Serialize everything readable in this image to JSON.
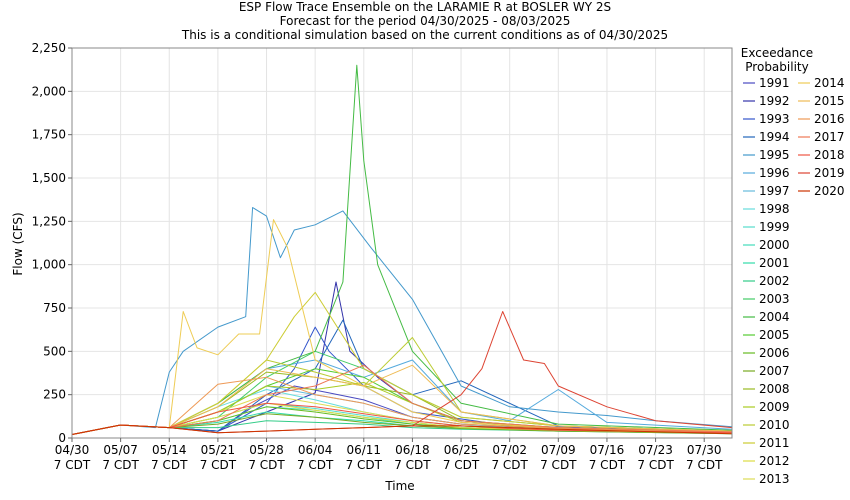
{
  "chart_data": {
    "type": "line",
    "title": [
      "ESP Flow Trace Ensemble on the LARAMIE R at BOSLER WY 2S",
      "Forecast for the period 04/30/2025 - 08/03/2025",
      "This is a conditional simulation based on the current conditions as of 04/30/2025"
    ],
    "xlabel": "Time",
    "ylabel": "Flow (CFS)",
    "x_domain": [
      "2025-04-30",
      "2025-08-03"
    ],
    "ylim": [
      0,
      2250
    ],
    "yticks": [
      0,
      250,
      500,
      750,
      1000,
      1250,
      1500,
      1750,
      2000,
      2250
    ],
    "ytick_labels": [
      "0",
      "250",
      "500",
      "750",
      "1,000",
      "1,250",
      "1,500",
      "1,750",
      "2,000",
      "2,250"
    ],
    "xticks": [
      "2025-04-30",
      "2025-05-07",
      "2025-05-14",
      "2025-05-21",
      "2025-05-28",
      "2025-06-04",
      "2025-06-11",
      "2025-06-18",
      "2025-06-25",
      "2025-07-02",
      "2025-07-09",
      "2025-07-16",
      "2025-07-23",
      "2025-07-30"
    ],
    "xtick_labels": [
      [
        "04/30",
        "7 CDT"
      ],
      [
        "05/07",
        "7 CDT"
      ],
      [
        "05/14",
        "7 CDT"
      ],
      [
        "05/21",
        "7 CDT"
      ],
      [
        "05/28",
        "7 CDT"
      ],
      [
        "06/04",
        "7 CDT"
      ],
      [
        "06/11",
        "7 CDT"
      ],
      [
        "06/18",
        "7 CDT"
      ],
      [
        "06/25",
        "7 CDT"
      ],
      [
        "07/02",
        "7 CDT"
      ],
      [
        "07/09",
        "7 CDT"
      ],
      [
        "07/16",
        "7 CDT"
      ],
      [
        "07/23",
        "7 CDT"
      ],
      [
        "07/30",
        "7 CDT"
      ]
    ],
    "grid": true,
    "legend": {
      "title": [
        "Exceedance",
        "Probability"
      ],
      "placement": "right"
    },
    "series": [
      {
        "name": "1991",
        "color": "#4a4ac0",
        "x": [
          "2025-04-30",
          "2025-05-07",
          "2025-05-14",
          "2025-05-21",
          "2025-05-26",
          "2025-06-01",
          "2025-06-06",
          "2025-06-11",
          "2025-06-18",
          "2025-06-25",
          "2025-07-09",
          "2025-08-03"
        ],
        "y": [
          20,
          75,
          60,
          40,
          180,
          300,
          260,
          220,
          120,
          80,
          50,
          30
        ]
      },
      {
        "name": "1992",
        "color": "#3333aa",
        "x": [
          "2025-04-30",
          "2025-05-07",
          "2025-05-14",
          "2025-05-21",
          "2025-05-28",
          "2025-06-04",
          "2025-06-07",
          "2025-06-09",
          "2025-06-13",
          "2025-06-18",
          "2025-06-25",
          "2025-07-09",
          "2025-08-03"
        ],
        "y": [
          20,
          75,
          60,
          40,
          150,
          260,
          900,
          500,
          350,
          200,
          100,
          55,
          35
        ]
      },
      {
        "name": "1993",
        "color": "#3355cc",
        "x": [
          "2025-04-30",
          "2025-05-07",
          "2025-05-14",
          "2025-05-21",
          "2025-05-28",
          "2025-06-01",
          "2025-06-04",
          "2025-06-06",
          "2025-06-11",
          "2025-06-18",
          "2025-07-02",
          "2025-08-03"
        ],
        "y": [
          20,
          75,
          60,
          40,
          200,
          400,
          640,
          500,
          300,
          150,
          70,
          40
        ]
      },
      {
        "name": "1994",
        "color": "#2266bb",
        "x": [
          "2025-04-30",
          "2025-05-07",
          "2025-05-14",
          "2025-05-21",
          "2025-05-28",
          "2025-06-04",
          "2025-06-08",
          "2025-06-11",
          "2025-06-18",
          "2025-06-25",
          "2025-07-09",
          "2025-08-03"
        ],
        "y": [
          20,
          75,
          60,
          40,
          250,
          400,
          680,
          400,
          250,
          330,
          70,
          40
        ]
      },
      {
        "name": "1995",
        "color": "#4499cc",
        "x": [
          "2025-04-30",
          "2025-05-07",
          "2025-05-12",
          "2025-05-14",
          "2025-05-16",
          "2025-05-21",
          "2025-05-25",
          "2025-05-26",
          "2025-05-28",
          "2025-05-30",
          "2025-06-01",
          "2025-06-04",
          "2025-06-08",
          "2025-06-12",
          "2025-06-14",
          "2025-06-18",
          "2025-06-25",
          "2025-07-02",
          "2025-07-09",
          "2025-07-16",
          "2025-07-23",
          "2025-08-03"
        ],
        "y": [
          20,
          75,
          60,
          380,
          500,
          640,
          700,
          1330,
          1280,
          1040,
          1200,
          1230,
          1310,
          1100,
          1000,
          800,
          300,
          180,
          150,
          130,
          100,
          65
        ]
      },
      {
        "name": "1996",
        "color": "#55aadd",
        "x": [
          "2025-04-30",
          "2025-05-07",
          "2025-05-14",
          "2025-05-21",
          "2025-05-28",
          "2025-06-04",
          "2025-06-11",
          "2025-06-18",
          "2025-06-25",
          "2025-07-02",
          "2025-07-09",
          "2025-07-16",
          "2025-08-03"
        ],
        "y": [
          20,
          75,
          60,
          200,
          400,
          450,
          350,
          450,
          150,
          100,
          280,
          90,
          50
        ]
      },
      {
        "name": "1997",
        "color": "#66bbdd",
        "x": [
          "2025-04-30",
          "2025-05-07",
          "2025-05-14",
          "2025-05-21",
          "2025-05-28",
          "2025-06-04",
          "2025-06-11",
          "2025-06-18",
          "2025-06-25",
          "2025-07-02",
          "2025-07-09",
          "2025-08-03"
        ],
        "y": [
          20,
          75,
          60,
          150,
          300,
          250,
          200,
          120,
          80,
          60,
          50,
          30
        ]
      },
      {
        "name": "1998",
        "color": "#66dddd",
        "x": [
          "2025-04-30",
          "2025-05-07",
          "2025-05-14",
          "2025-05-21",
          "2025-05-28",
          "2025-06-04",
          "2025-06-11",
          "2025-06-18",
          "2025-06-25",
          "2025-07-09",
          "2025-08-03"
        ],
        "y": [
          20,
          75,
          60,
          180,
          280,
          220,
          150,
          100,
          70,
          50,
          30
        ]
      },
      {
        "name": "1999",
        "color": "#55ddcc",
        "x": [
          "2025-04-30",
          "2025-05-07",
          "2025-05-14",
          "2025-05-21",
          "2025-05-28",
          "2025-06-04",
          "2025-06-11",
          "2025-06-18",
          "2025-06-25",
          "2025-07-09",
          "2025-08-03"
        ],
        "y": [
          20,
          75,
          60,
          120,
          200,
          170,
          130,
          90,
          60,
          45,
          30
        ]
      },
      {
        "name": "2000",
        "color": "#44ddbb",
        "x": [
          "2025-04-30",
          "2025-05-07",
          "2025-05-14",
          "2025-05-21",
          "2025-05-28",
          "2025-06-04",
          "2025-06-11",
          "2025-06-18",
          "2025-06-25",
          "2025-07-09",
          "2025-08-03"
        ],
        "y": [
          20,
          75,
          60,
          100,
          180,
          160,
          120,
          80,
          60,
          45,
          30
        ]
      },
      {
        "name": "2001",
        "color": "#33ddaa",
        "x": [
          "2025-04-30",
          "2025-05-07",
          "2025-05-14",
          "2025-05-21",
          "2025-05-28",
          "2025-06-04",
          "2025-06-11",
          "2025-06-18",
          "2025-06-25",
          "2025-07-09",
          "2025-08-03"
        ],
        "y": [
          20,
          75,
          60,
          90,
          150,
          120,
          100,
          70,
          55,
          40,
          28
        ]
      },
      {
        "name": "2002",
        "color": "#33cc88",
        "x": [
          "2025-04-30",
          "2025-05-07",
          "2025-05-14",
          "2025-05-21",
          "2025-05-28",
          "2025-06-04",
          "2025-06-11",
          "2025-06-18",
          "2025-06-25",
          "2025-07-09",
          "2025-08-03"
        ],
        "y": [
          20,
          75,
          60,
          60,
          100,
          90,
          80,
          60,
          50,
          40,
          25
        ]
      },
      {
        "name": "2003",
        "color": "#44cc66",
        "x": [
          "2025-04-30",
          "2025-05-07",
          "2025-05-14",
          "2025-05-21",
          "2025-05-28",
          "2025-06-04",
          "2025-06-11",
          "2025-06-18",
          "2025-06-25",
          "2025-07-09",
          "2025-08-03"
        ],
        "y": [
          20,
          75,
          60,
          120,
          350,
          500,
          400,
          250,
          120,
          70,
          40
        ]
      },
      {
        "name": "2004",
        "color": "#44bb44",
        "x": [
          "2025-04-30",
          "2025-05-07",
          "2025-05-14",
          "2025-05-21",
          "2025-05-28",
          "2025-06-04",
          "2025-06-08",
          "2025-06-10",
          "2025-06-11",
          "2025-06-13",
          "2025-06-18",
          "2025-06-25",
          "2025-07-09",
          "2025-08-03"
        ],
        "y": [
          20,
          75,
          60,
          200,
          400,
          500,
          900,
          2150,
          1600,
          1000,
          500,
          200,
          80,
          45
        ]
      },
      {
        "name": "2005",
        "color": "#55cc33",
        "x": [
          "2025-04-30",
          "2025-05-07",
          "2025-05-14",
          "2025-05-21",
          "2025-05-28",
          "2025-06-04",
          "2025-06-11",
          "2025-06-18",
          "2025-06-25",
          "2025-07-09",
          "2025-08-03"
        ],
        "y": [
          20,
          75,
          60,
          150,
          300,
          400,
          350,
          200,
          100,
          60,
          35
        ]
      },
      {
        "name": "2006",
        "color": "#66bb22",
        "x": [
          "2025-04-30",
          "2025-05-07",
          "2025-05-14",
          "2025-05-21",
          "2025-05-28",
          "2025-06-04",
          "2025-06-11",
          "2025-06-18",
          "2025-06-25",
          "2025-07-09",
          "2025-08-03"
        ],
        "y": [
          20,
          75,
          60,
          100,
          180,
          150,
          110,
          80,
          60,
          45,
          28
        ]
      },
      {
        "name": "2007",
        "color": "#77aa22",
        "x": [
          "2025-04-30",
          "2025-05-07",
          "2025-05-14",
          "2025-05-21",
          "2025-05-28",
          "2025-06-04",
          "2025-06-11",
          "2025-06-18",
          "2025-06-25",
          "2025-07-09",
          "2025-08-03"
        ],
        "y": [
          20,
          75,
          60,
          80,
          140,
          120,
          90,
          70,
          55,
          40,
          25
        ]
      },
      {
        "name": "2008",
        "color": "#99bb22",
        "x": [
          "2025-04-30",
          "2025-05-07",
          "2025-05-14",
          "2025-05-21",
          "2025-05-28",
          "2025-06-04",
          "2025-06-11",
          "2025-06-18",
          "2025-06-25",
          "2025-07-09",
          "2025-08-03"
        ],
        "y": [
          20,
          75,
          60,
          180,
          380,
          350,
          300,
          250,
          100,
          60,
          35
        ]
      },
      {
        "name": "2009",
        "color": "#aacc22",
        "x": [
          "2025-04-30",
          "2025-05-07",
          "2025-05-14",
          "2025-05-21",
          "2025-05-28",
          "2025-06-04",
          "2025-06-11",
          "2025-06-18",
          "2025-06-25",
          "2025-07-09",
          "2025-08-03"
        ],
        "y": [
          20,
          75,
          60,
          150,
          300,
          280,
          320,
          200,
          90,
          55,
          32
        ]
      },
      {
        "name": "2010",
        "color": "#bbcc33",
        "x": [
          "2025-04-30",
          "2025-05-07",
          "2025-05-14",
          "2025-05-21",
          "2025-05-28",
          "2025-06-04",
          "2025-06-11",
          "2025-06-18",
          "2025-06-25",
          "2025-07-09",
          "2025-08-03"
        ],
        "y": [
          20,
          75,
          60,
          200,
          450,
          380,
          300,
          580,
          150,
          70,
          40
        ]
      },
      {
        "name": "2011",
        "color": "#cccc33",
        "x": [
          "2025-04-30",
          "2025-05-07",
          "2025-05-14",
          "2025-05-21",
          "2025-05-28",
          "2025-06-01",
          "2025-06-04",
          "2025-06-11",
          "2025-06-18",
          "2025-06-25",
          "2025-07-09",
          "2025-08-03"
        ],
        "y": [
          20,
          75,
          60,
          200,
          450,
          700,
          840,
          400,
          250,
          120,
          70,
          40
        ]
      },
      {
        "name": "2012",
        "color": "#dddd44",
        "x": [
          "2025-04-30",
          "2025-05-07",
          "2025-05-14",
          "2025-05-21",
          "2025-05-28",
          "2025-06-04",
          "2025-06-11",
          "2025-06-18",
          "2025-06-25",
          "2025-07-09",
          "2025-08-03"
        ],
        "y": [
          20,
          75,
          60,
          120,
          200,
          160,
          120,
          90,
          60,
          45,
          28
        ]
      },
      {
        "name": "2013",
        "color": "#dddd55",
        "x": [
          "2025-04-30",
          "2025-05-07",
          "2025-05-14",
          "2025-05-21",
          "2025-05-28",
          "2025-06-04",
          "2025-06-11",
          "2025-06-18",
          "2025-06-25",
          "2025-07-09",
          "2025-08-03"
        ],
        "y": [
          20,
          75,
          60,
          150,
          250,
          200,
          150,
          100,
          70,
          50,
          30
        ]
      },
      {
        "name": "2014",
        "color": "#eecc55",
        "x": [
          "2025-04-30",
          "2025-05-07",
          "2025-05-14",
          "2025-05-16",
          "2025-05-18",
          "2025-05-21",
          "2025-05-24",
          "2025-05-27",
          "2025-05-29",
          "2025-05-31",
          "2025-06-04",
          "2025-06-11",
          "2025-06-18",
          "2025-06-25",
          "2025-07-09",
          "2025-08-03"
        ],
        "y": [
          20,
          75,
          60,
          730,
          520,
          480,
          600,
          600,
          1260,
          1100,
          450,
          300,
          150,
          90,
          60,
          35
        ]
      },
      {
        "name": "2015",
        "color": "#eebb55",
        "x": [
          "2025-04-30",
          "2025-05-07",
          "2025-05-14",
          "2025-05-21",
          "2025-05-28",
          "2025-06-04",
          "2025-06-11",
          "2025-06-18",
          "2025-06-25",
          "2025-07-09",
          "2025-08-03"
        ],
        "y": [
          20,
          75,
          60,
          180,
          400,
          350,
          300,
          420,
          150,
          70,
          40
        ]
      },
      {
        "name": "2016",
        "color": "#ee9955",
        "x": [
          "2025-04-30",
          "2025-05-07",
          "2025-05-14",
          "2025-05-21",
          "2025-05-28",
          "2025-06-04",
          "2025-06-11",
          "2025-06-18",
          "2025-06-25",
          "2025-07-09",
          "2025-08-03"
        ],
        "y": [
          20,
          75,
          60,
          310,
          350,
          250,
          200,
          120,
          80,
          55,
          32
        ]
      },
      {
        "name": "2017",
        "color": "#ee7755",
        "x": [
          "2025-04-30",
          "2025-05-07",
          "2025-05-14",
          "2025-05-21",
          "2025-05-28",
          "2025-06-04",
          "2025-06-11",
          "2025-06-18",
          "2025-06-25",
          "2025-07-09",
          "2025-08-03"
        ],
        "y": [
          20,
          75,
          60,
          100,
          250,
          300,
          420,
          200,
          100,
          60,
          35
        ]
      },
      {
        "name": "2018",
        "color": "#ee5544",
        "x": [
          "2025-04-30",
          "2025-05-07",
          "2025-05-14",
          "2025-05-21",
          "2025-05-28",
          "2025-06-04",
          "2025-06-11",
          "2025-06-18",
          "2025-06-25",
          "2025-07-02",
          "2025-07-09",
          "2025-08-03"
        ],
        "y": [
          20,
          75,
          60,
          150,
          200,
          180,
          140,
          100,
          70,
          55,
          45,
          30
        ]
      },
      {
        "name": "2019",
        "color": "#dd4433",
        "x": [
          "2025-04-30",
          "2025-05-07",
          "2025-05-14",
          "2025-05-21",
          "2025-05-28",
          "2025-06-04",
          "2025-06-11",
          "2025-06-18",
          "2025-06-25",
          "2025-06-28",
          "2025-07-01",
          "2025-07-04",
          "2025-07-07",
          "2025-07-09",
          "2025-07-16",
          "2025-07-23",
          "2025-08-03"
        ],
        "y": [
          20,
          75,
          60,
          30,
          40,
          50,
          60,
          70,
          250,
          400,
          730,
          450,
          430,
          300,
          180,
          100,
          60
        ]
      },
      {
        "name": "2020",
        "color": "#cc3300",
        "x": [
          "2025-04-30",
          "2025-05-07",
          "2025-05-14",
          "2025-05-21",
          "2025-05-28",
          "2025-06-04",
          "2025-06-11",
          "2025-06-18",
          "2025-06-25",
          "2025-07-09",
          "2025-08-03"
        ],
        "y": [
          20,
          75,
          60,
          30,
          40,
          50,
          60,
          70,
          70,
          50,
          25
        ]
      }
    ]
  }
}
